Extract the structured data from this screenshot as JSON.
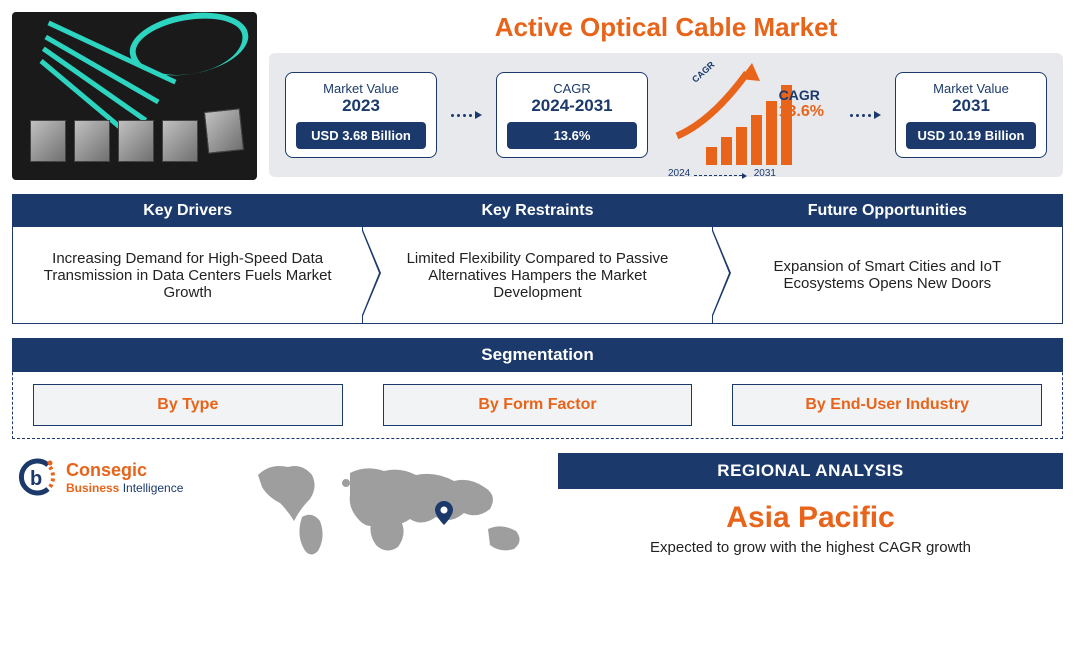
{
  "title": "Active Optical Cable Market",
  "stats": {
    "start": {
      "label": "Market Value",
      "year": "2023",
      "value": "USD 3.68 Billion"
    },
    "cagr": {
      "label": "CAGR",
      "period": "2024-2031",
      "value": "13.6%"
    },
    "end": {
      "label": "Market Value",
      "year": "2031",
      "value": "USD 10.19 Billion"
    },
    "graphic": {
      "cagr_label": "CAGR",
      "cagr_value": "13.6%",
      "curve_label": "CAGR",
      "year_start": "2024",
      "year_end": "2031",
      "bars": [
        18,
        28,
        38,
        50,
        64,
        80
      ],
      "bar_color": "#e8641a",
      "arrow_color": "#e8641a"
    }
  },
  "drivers": {
    "header": "Key Drivers",
    "body": "Increasing Demand for High-Speed Data Transmission in Data Centers Fuels Market Growth"
  },
  "restraints": {
    "header": "Key Restraints",
    "body": "Limited Flexibility Compared to Passive Alternatives Hampers the Market Development"
  },
  "opportunities": {
    "header": "Future Opportunities",
    "body": "Expansion of Smart Cities and IoT Ecosystems Opens New Doors"
  },
  "segmentation": {
    "header": "Segmentation",
    "items": [
      "By Type",
      "By Form Factor",
      "By End-User Industry"
    ]
  },
  "logo": {
    "line1": "Consegic",
    "line2a": "Business",
    "line2b": " Intelligence"
  },
  "regional": {
    "header": "REGIONAL ANALYSIS",
    "region": "Asia Pacific",
    "desc": "Expected to grow with the highest CAGR growth"
  },
  "colors": {
    "navy": "#1b3a6b",
    "orange": "#e8641a",
    "teal": "#2dd4bf",
    "grey_bg": "#e8e9ed",
    "map_grey": "#9e9e9e"
  }
}
